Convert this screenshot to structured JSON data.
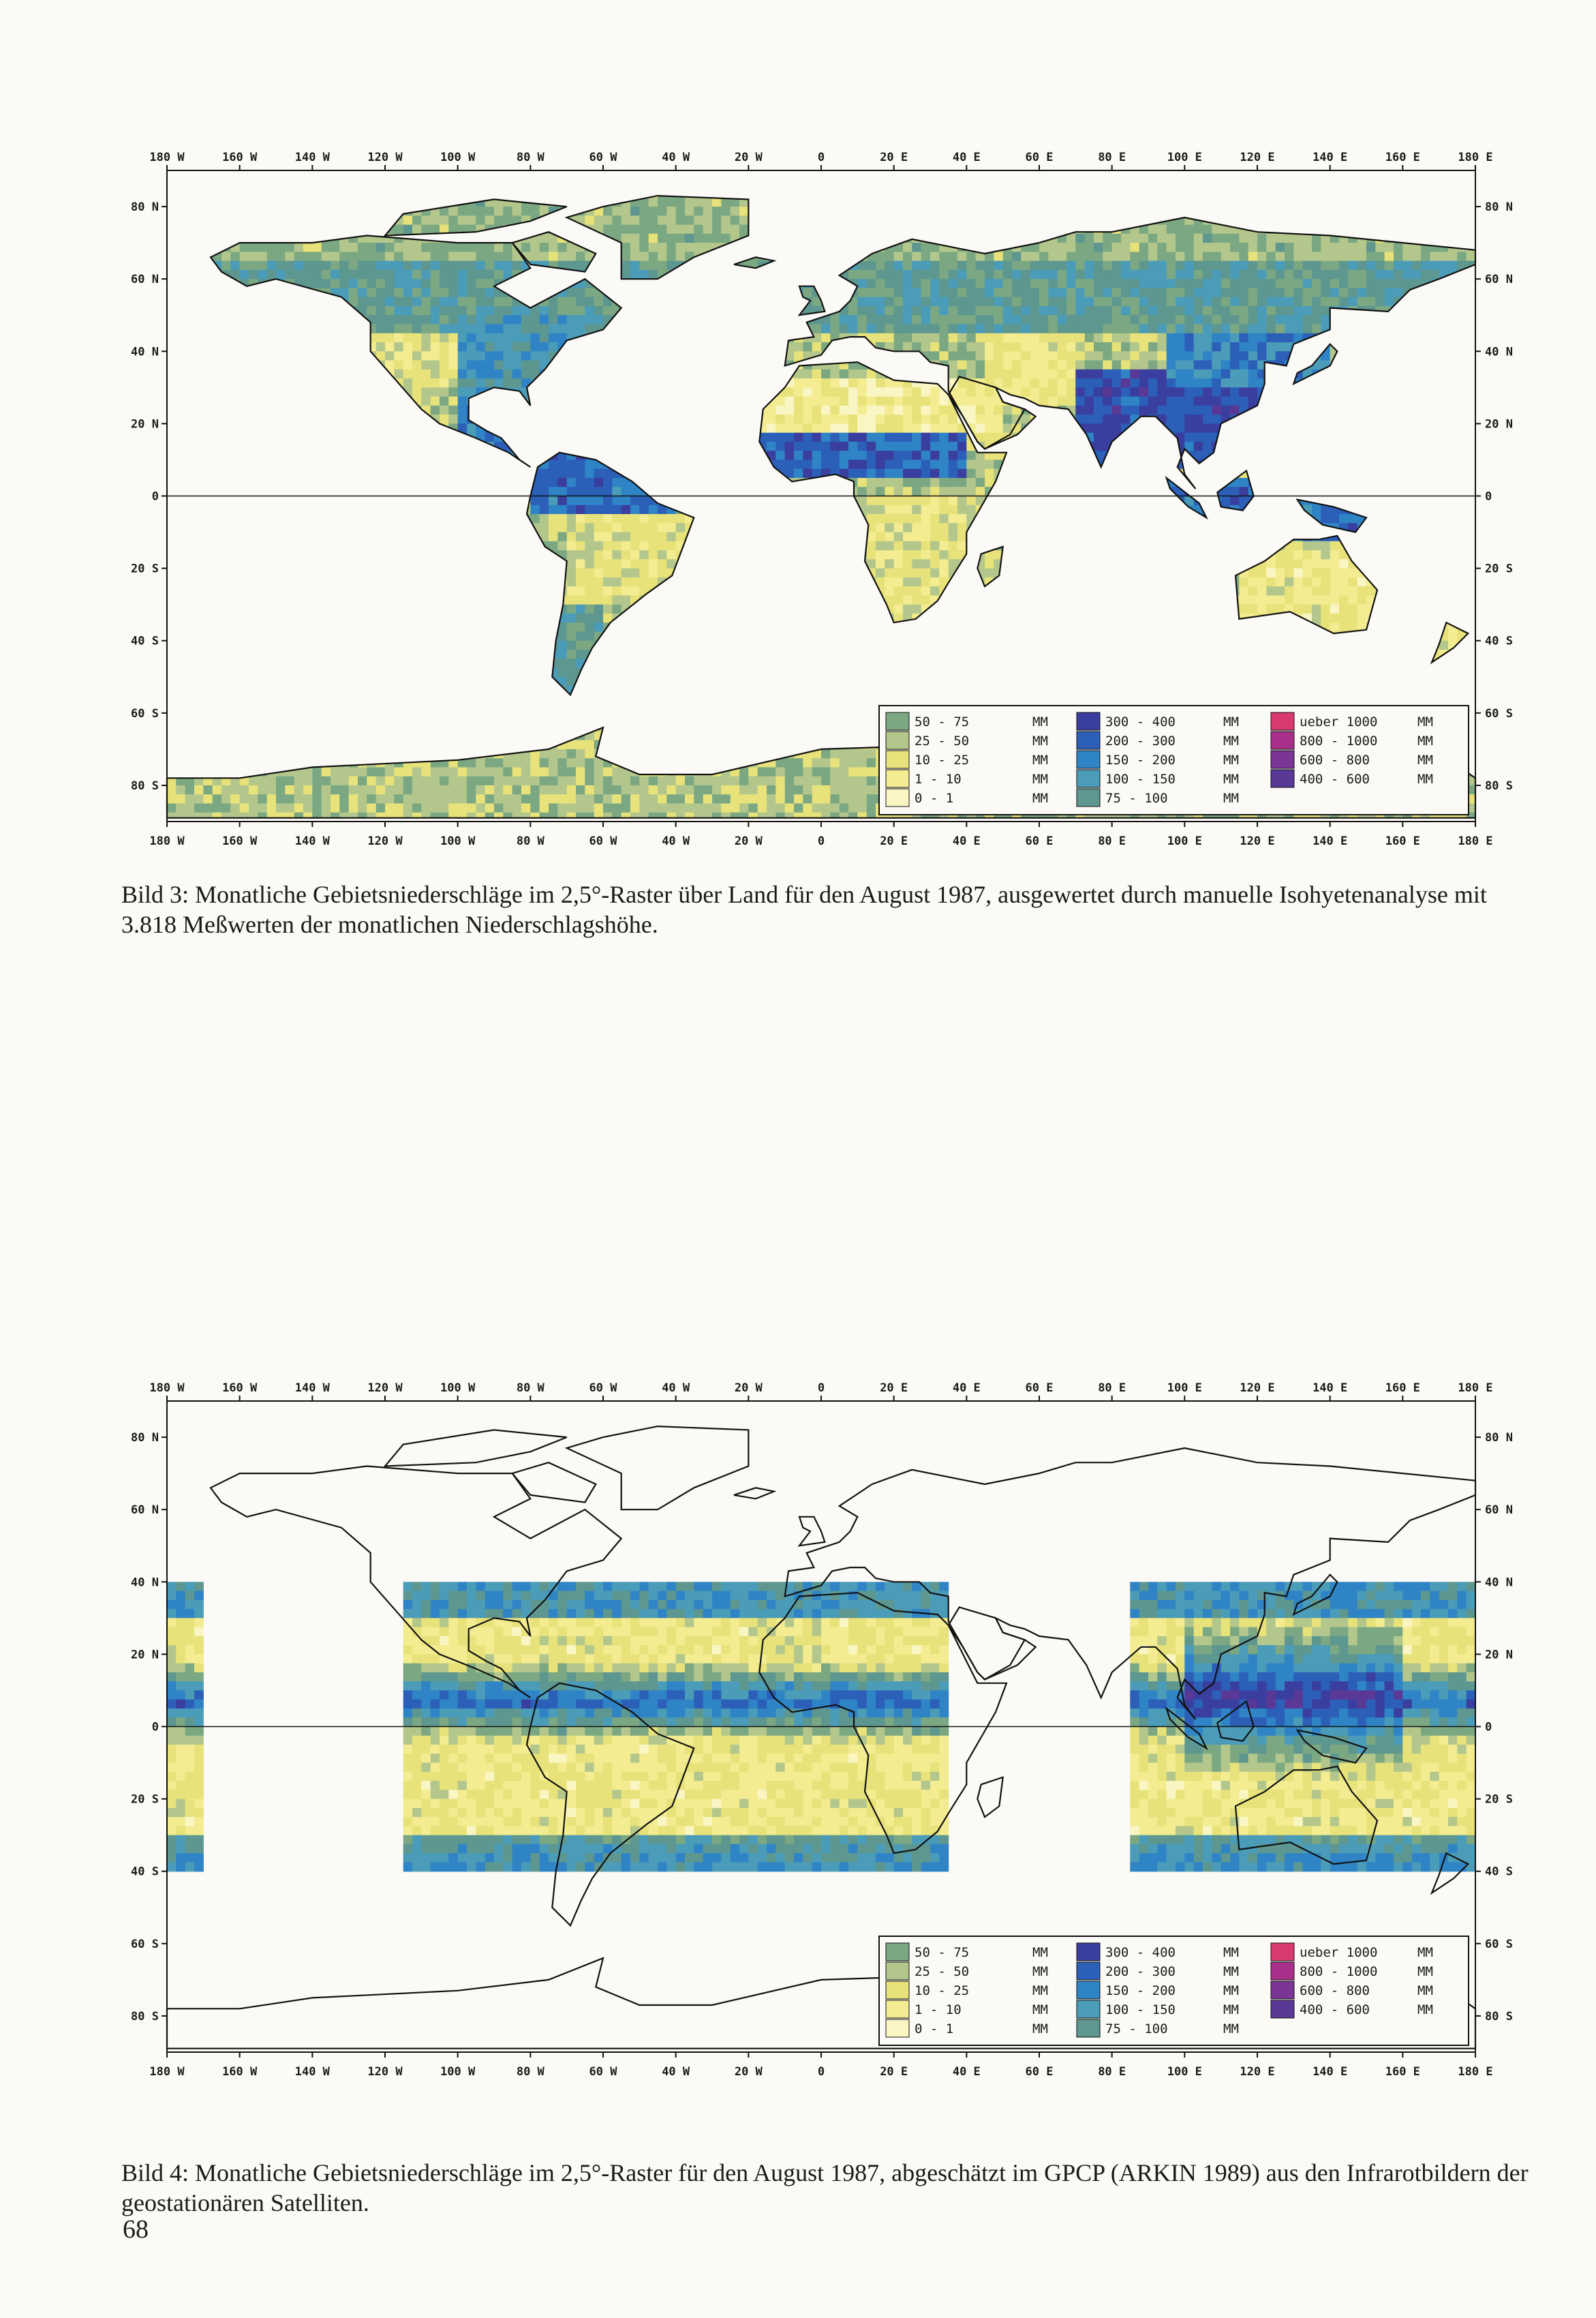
{
  "figures": [
    {
      "id": "fig3",
      "label": "Bild 3:",
      "caption": "Monatliche Gebietsniederschläge im 2,5°-Raster über Land für den August 1987, ausgewertet durch manuelle Isohyetenanalyse mit 3.818 Meßwerten der monatlichen Niederschlagshöhe.",
      "kind": "land"
    },
    {
      "id": "fig4",
      "label": "Bild 4:",
      "caption": "Monatliche Gebietsniederschläge im 2,5°-Raster für den August 1987, abgeschätzt im GPCP (ARKIN 1989) aus den Infrarotbildern der geostationären Satelliten.",
      "kind": "satellite"
    }
  ],
  "axes": {
    "lon_top": [
      "180 W",
      "160 W",
      "140 W",
      "120 W",
      "100 W",
      "80 W",
      "60 W",
      "40 W",
      "20 W",
      "0",
      "20 E",
      "40 E",
      "60 E",
      "80 E",
      "100 E",
      "120 E",
      "140 E",
      "160 E",
      "180 E"
    ],
    "lon_values": [
      -180,
      -160,
      -140,
      -120,
      -100,
      -80,
      -60,
      -40,
      -20,
      0,
      20,
      40,
      60,
      80,
      100,
      120,
      140,
      160,
      180
    ],
    "lat_left": [
      "80 N",
      "60 N",
      "40 N",
      "20 N",
      "0",
      "20 S",
      "40 S",
      "60 S",
      "80 S"
    ],
    "lat_right": [
      "80 N",
      "60 N",
      "40 N",
      "20 N",
      "0",
      "20 S",
      "40 S",
      "60 S",
      "80 S"
    ],
    "lat_values": [
      80,
      60,
      40,
      20,
      0,
      -20,
      -40,
      -60,
      -80
    ]
  },
  "legend": {
    "columns": [
      [
        {
          "range": "50   - 75",
          "unit": "MM",
          "color": "#7ba882"
        },
        {
          "range": "25   - 50",
          "unit": "MM",
          "color": "#b3c78c"
        },
        {
          "range": "10   - 25",
          "unit": "MM",
          "color": "#e8e27a"
        },
        {
          "range": "1    - 10",
          "unit": "MM",
          "color": "#f3ec90"
        },
        {
          "range": "0    - 1",
          "unit": "MM",
          "color": "#faf6c4"
        }
      ],
      [
        {
          "range": "300  - 400",
          "unit": "MM",
          "color": "#3a3e9e"
        },
        {
          "range": "200  - 300",
          "unit": "MM",
          "color": "#2b5fb8"
        },
        {
          "range": "150  - 200",
          "unit": "MM",
          "color": "#2f84c6"
        },
        {
          "range": "100  - 150",
          "unit": "MM",
          "color": "#4b9cb8"
        },
        {
          "range": "75   - 100",
          "unit": "MM",
          "color": "#5d978f"
        }
      ],
      [
        {
          "range": "ueber 1000",
          "unit": "MM",
          "color": "#d93a72"
        },
        {
          "range": "800  - 1000",
          "unit": "MM",
          "color": "#a8308a"
        },
        {
          "range": "600  - 800",
          "unit": "MM",
          "color": "#7b3596"
        },
        {
          "range": "400  - 600",
          "unit": "MM",
          "color": "#5a3896"
        }
      ]
    ]
  },
  "page_number": "68"
}
